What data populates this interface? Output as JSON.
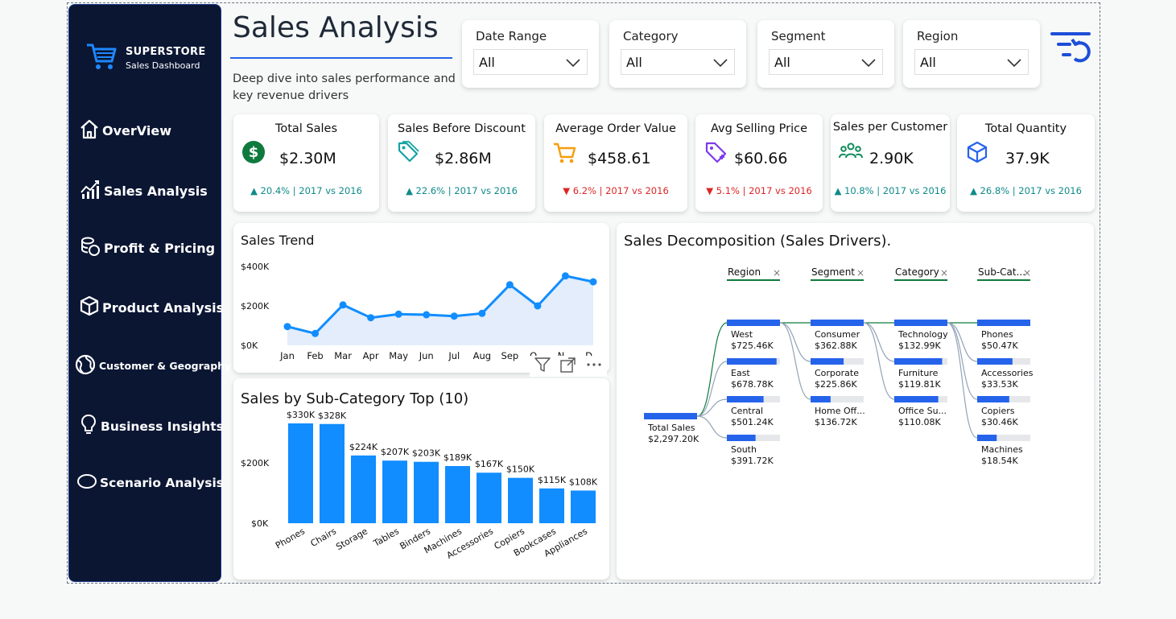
{
  "brand": {
    "title": "SUPERSTORE",
    "subtitle": "Sales Dashboard",
    "color": "#0b1633"
  },
  "nav": [
    {
      "label": "OverView",
      "icon": "home-icon"
    },
    {
      "label": "Sales Analysis",
      "icon": "sales-chart-icon"
    },
    {
      "label": "Profit & Pricing",
      "icon": "coins-icon"
    },
    {
      "label": "Product Analysis",
      "icon": "box-icon"
    },
    {
      "label": "Customer & Geography",
      "icon": "globe-icon"
    },
    {
      "label": "Business Insights",
      "icon": "lightbulb-icon"
    },
    {
      "label": "Scenario Analysis",
      "icon": "oval-icon"
    }
  ],
  "header": {
    "title": "Sales Analysis",
    "description": "Deep dive into sales performance and key revenue drivers"
  },
  "filters": [
    {
      "label": "Date Range",
      "value": "All"
    },
    {
      "label": "Category",
      "value": "All"
    },
    {
      "label": "Segment",
      "value": "All"
    },
    {
      "label": "Region",
      "value": "All"
    }
  ],
  "kpis": [
    {
      "title": "Total Sales",
      "value": "$2.30M",
      "change": "▲ 20.4% | 2017 vs 2016",
      "direction": "up",
      "icon": "dollar-icon"
    },
    {
      "title": "Sales Before Discount",
      "value": "$2.86M",
      "change": "▲ 22.6% | 2017 vs 2016",
      "direction": "up",
      "icon": "tags-icon"
    },
    {
      "title": "Average Order Value",
      "value": "$458.61",
      "change": "▼ 6.2% | 2017 vs 2016",
      "direction": "down",
      "icon": "cart-icon"
    },
    {
      "title": "Avg Selling Price",
      "value": "$60.66",
      "change": "▼ 5.1% | 2017 vs 2016",
      "direction": "down",
      "icon": "price-tag-icon"
    },
    {
      "title": "Sales per Customer",
      "value": "2.90K",
      "change": "▲ 10.8% | 2017 vs 2016",
      "direction": "up",
      "icon": "customers-icon"
    },
    {
      "title": "Total Quantity",
      "value": "37.9K",
      "change": "▲ 26.8% | 2017 vs 2016",
      "direction": "up",
      "icon": "cube-icon"
    }
  ],
  "colors": {
    "accent": "#2563eb",
    "up": "#0f8a8a",
    "down": "#dc2626",
    "bar": "#118dff",
    "decomp_bar": "#2563eb"
  },
  "chart_data": [
    {
      "type": "area",
      "title": "Sales Trend",
      "categories": [
        "Jan",
        "Feb",
        "Mar",
        "Apr",
        "May",
        "Jun",
        "Jul",
        "Aug",
        "Sep",
        "Oct",
        "Nov",
        "Dec"
      ],
      "visible_tick_labels": [
        "Jan",
        "Feb",
        "Mar",
        "Apr",
        "May",
        "Jun",
        "Jul",
        "Aug",
        "Sep",
        "O...",
        "N...",
        "D..."
      ],
      "values": [
        95000,
        60000,
        205000,
        140000,
        158000,
        155000,
        148000,
        162000,
        307000,
        200000,
        352000,
        322000
      ],
      "y_ticks": [
        "$0K",
        "$200K",
        "$400K"
      ],
      "ylim": [
        0,
        400000
      ]
    },
    {
      "type": "bar",
      "title": "Sales by Sub-Category Top (10)",
      "categories": [
        "Phones",
        "Chairs",
        "Storage",
        "Tables",
        "Binders",
        "Machines",
        "Accessories",
        "Copiers",
        "Bookcases",
        "Appliances"
      ],
      "values": [
        330000,
        328000,
        224000,
        207000,
        203000,
        189000,
        167000,
        150000,
        115000,
        108000
      ],
      "data_labels": [
        "$330K",
        "$328K",
        "$224K",
        "$207K",
        "$203K",
        "$189K",
        "$167K",
        "$150K",
        "$115K",
        "$108K"
      ],
      "y_ticks": [
        "$0K",
        "$200K"
      ],
      "ylim": [
        0,
        350000
      ]
    },
    {
      "type": "decomposition-tree",
      "title": "Sales Decomposition (Sales Drivers).",
      "root": {
        "label": "Total Sales",
        "value": "$2,297.20K",
        "amount": 2297.2
      },
      "levels": [
        {
          "header": "Region",
          "nodes": [
            {
              "label": "West",
              "value": "$725.46K",
              "amount": 725.46
            },
            {
              "label": "East",
              "value": "$678.78K",
              "amount": 678.78
            },
            {
              "label": "Central",
              "value": "$501.24K",
              "amount": 501.24
            },
            {
              "label": "South",
              "value": "$391.72K",
              "amount": 391.72
            }
          ]
        },
        {
          "header": "Segment",
          "nodes": [
            {
              "label": "Consumer",
              "value": "$362.88K",
              "amount": 362.88
            },
            {
              "label": "Corporate",
              "value": "$225.86K",
              "amount": 225.86
            },
            {
              "label": "Home Off...",
              "value": "$136.72K",
              "amount": 136.72
            }
          ]
        },
        {
          "header": "Category",
          "nodes": [
            {
              "label": "Technology",
              "value": "$132.99K",
              "amount": 132.99
            },
            {
              "label": "Furniture",
              "value": "$119.81K",
              "amount": 119.81
            },
            {
              "label": "Office Su...",
              "value": "$110.08K",
              "amount": 110.08
            }
          ]
        },
        {
          "header": "Sub-Cat...",
          "nodes": [
            {
              "label": "Phones",
              "value": "$50.47K",
              "amount": 50.47
            },
            {
              "label": "Accessories",
              "value": "$33.53K",
              "amount": 33.53
            },
            {
              "label": "Copiers",
              "value": "$30.46K",
              "amount": 30.46
            },
            {
              "label": "Machines",
              "value": "$18.54K",
              "amount": 18.54
            }
          ]
        }
      ]
    }
  ]
}
